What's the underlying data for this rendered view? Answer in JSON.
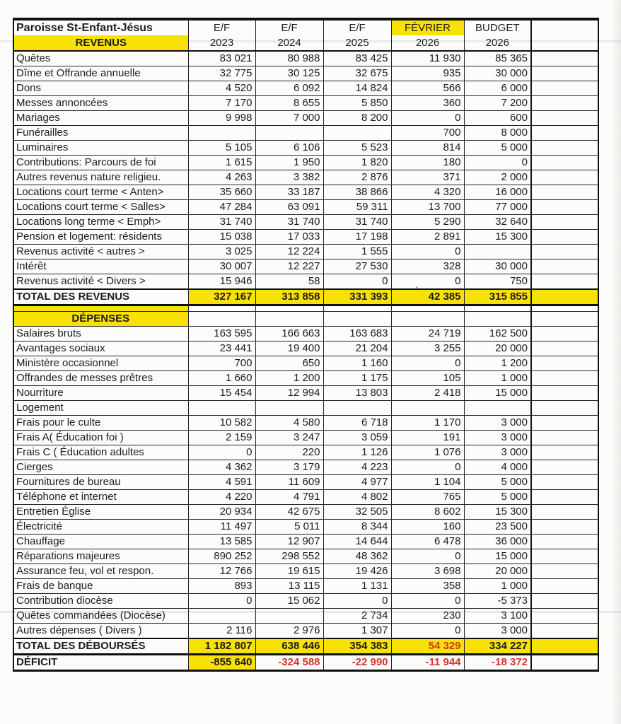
{
  "table": {
    "header": {
      "title": "Paroisse St-Enfant-Jésus",
      "revenue_band": "REVENUS",
      "columns": [
        {
          "line1": "E/F",
          "line2": "2023",
          "highlight": false
        },
        {
          "line1": "E/F",
          "line2": "2024",
          "highlight": false
        },
        {
          "line1": "E/F",
          "line2": "2025",
          "highlight": false
        },
        {
          "line1": "FÉVRIER",
          "line2": "2026",
          "highlight": true
        },
        {
          "line1": "BUDGET",
          "line2": "2026",
          "highlight": false
        }
      ]
    },
    "revenus": {
      "rows": [
        {
          "label": "Quêtes",
          "values": [
            "83 021",
            "80 988",
            "83 425",
            "11 930",
            "85 365"
          ]
        },
        {
          "label": "Dîme et Offrande annuelle",
          "values": [
            "32 775",
            "30 125",
            "32 675",
            "935",
            "30 000"
          ]
        },
        {
          "label": "Dons",
          "values": [
            "4 520",
            "6 092",
            "14 824",
            "566",
            "6 000"
          ]
        },
        {
          "label": "Messes annoncées",
          "values": [
            "7 170",
            "8 655",
            "5 850",
            "360",
            "7 200"
          ]
        },
        {
          "label": "Mariages",
          "values": [
            "9 998",
            "7 000",
            "8 200",
            "0",
            "600"
          ]
        },
        {
          "label": "Funérailles",
          "values": [
            "",
            "",
            "",
            "700",
            "8 000"
          ]
        },
        {
          "label": "Luminaires",
          "values": [
            "5 105",
            "6 106",
            "5 523",
            "814",
            "5 000"
          ]
        },
        {
          "label": "Contributions: Parcours de foi",
          "values": [
            "1 615",
            "1 950",
            "1 820",
            "180",
            "0"
          ]
        },
        {
          "label": "Autres revenus nature religieu.",
          "values": [
            "4 263",
            "3 382",
            "2 876",
            "371",
            "2 000"
          ]
        },
        {
          "label": "Locations court terme < Anten>",
          "values": [
            "35 660",
            "33 187",
            "38 866",
            "4 320",
            "16 000"
          ]
        },
        {
          "label": "Locations court terme < Salles>",
          "values": [
            "47 284",
            "63 091",
            "59 311",
            "13 700",
            "77 000"
          ]
        },
        {
          "label": "Locations long terme < Emph>",
          "values": [
            "31 740",
            "31 740",
            "31 740",
            "5 290",
            "32 640"
          ]
        },
        {
          "label": "Pension et logement: résidents",
          "values": [
            "15 038",
            "17 033",
            "17 198",
            "2 891",
            "15 300"
          ]
        },
        {
          "label": "Revenus activité < autres >",
          "values": [
            "3 025",
            "12 224",
            "1 555",
            "0",
            ""
          ]
        },
        {
          "label": "Intérêt",
          "values": [
            "30 007",
            "12 227",
            "27 530",
            "328",
            "30 000"
          ]
        },
        {
          "label": "Revenus activité < Divers >",
          "values": [
            "15 946",
            "58",
            "0",
            "0",
            "750"
          ],
          "artifact": ",",
          "artifact_col": 3
        }
      ],
      "total": {
        "label": "TOTAL DES REVENUS",
        "values": [
          "327 167",
          "313 858",
          "331 393",
          "42 385",
          "315 855"
        ],
        "value_styles": [
          "yellow",
          "yellow",
          "yellow",
          "yellow",
          "yellow"
        ]
      }
    },
    "depenses": {
      "band": "DÉPENSES",
      "rows": [
        {
          "label": "Salaires bruts",
          "values": [
            "163 595",
            "166 663",
            "163 683",
            "24 719",
            "162 500"
          ]
        },
        {
          "label": "Avantages sociaux",
          "values": [
            "23 441",
            "19 400",
            "21 204",
            "3 255",
            "20 000"
          ]
        },
        {
          "label": "Ministère occasionnel",
          "values": [
            "700",
            "650",
            "1 160",
            "0",
            "1 200"
          ]
        },
        {
          "label": "Offrandes de messes prêtres",
          "values": [
            "1 660",
            "1 200",
            "1 175",
            "105",
            "1 000"
          ]
        },
        {
          "label": "Nourriture",
          "values": [
            "15 454",
            "12 994",
            "13 803",
            "2 418",
            "15 000"
          ]
        },
        {
          "label": "Logement",
          "values": [
            "",
            "",
            "",
            "",
            ""
          ]
        },
        {
          "label": "Frais pour le culte",
          "values": [
            "10 582",
            "4 580",
            "6 718",
            "1 170",
            "3 000"
          ]
        },
        {
          "label": "Frais A( Éducation foi )",
          "values": [
            "2 159",
            "3 247",
            "3 059",
            "191",
            "3 000"
          ]
        },
        {
          "label": "Frais C ( Éducation adultes",
          "values": [
            "0",
            "220",
            "1 126",
            "1 076",
            "3 000"
          ]
        },
        {
          "label": "Cierges",
          "values": [
            "4 362",
            "3 179",
            "4 223",
            "0",
            "4 000"
          ]
        },
        {
          "label": "Fournitures de bureau",
          "values": [
            "4 591",
            "11 609",
            "4 977",
            "1 104",
            "5 000"
          ]
        },
        {
          "label": "Téléphone et internet",
          "values": [
            "4 220",
            "4 791",
            "4 802",
            "765",
            "5 000"
          ]
        },
        {
          "label": "Entretien Église",
          "values": [
            "20 934",
            "42 675",
            "32 505",
            "8 602",
            "15 300"
          ]
        },
        {
          "label": "Électricité",
          "values": [
            "11 497",
            "5 011",
            "8 344",
            "160",
            "23 500"
          ]
        },
        {
          "label": "Chauffage",
          "values": [
            "13 585",
            "12 907",
            "14 644",
            "6 478",
            "36 000"
          ]
        },
        {
          "label": "Réparations majeures",
          "values": [
            "890 252",
            "298 552",
            "48 362",
            "0",
            "15 000"
          ]
        },
        {
          "label": "Assurance feu, vol et respon.",
          "values": [
            "12 766",
            "19 615",
            "19 426",
            "3 698",
            "20 000"
          ]
        },
        {
          "label": "Frais de banque",
          "values": [
            "893",
            "13 115",
            "1 131",
            "358",
            "1 000"
          ]
        },
        {
          "label": "Contribution diocèse",
          "values": [
            "0",
            "15 062",
            "0",
            "0",
            "-5 373"
          ]
        },
        {
          "label": "Quêtes commandées (Diocèse)",
          "values": [
            "",
            "",
            "2 734",
            "230",
            "3 100"
          ]
        },
        {
          "label": "Autres dépenses ( Divers )",
          "values": [
            "2 116",
            "2 976",
            "1 307",
            "0",
            "3 000"
          ]
        }
      ],
      "total": {
        "label": "TOTAL DES DÉBOURSÉS",
        "values": [
          "1 182 807",
          "638 446",
          "354 383",
          "54 329",
          "334 227"
        ],
        "value_styles": [
          "yellow",
          "yellow",
          "yellow",
          "yellow-red",
          "yellow"
        ]
      },
      "deficit": {
        "label": "DÉFICIT",
        "values": [
          "-855 640",
          "-324 588",
          "-22 990",
          "-11 944",
          "-18 372"
        ],
        "value_styles": [
          "yellow",
          "red",
          "red",
          "red",
          "red"
        ]
      }
    },
    "colors": {
      "highlight_yellow": "#f8e104",
      "negative_red": "#d63529",
      "ink": "#1c1c1c"
    }
  }
}
